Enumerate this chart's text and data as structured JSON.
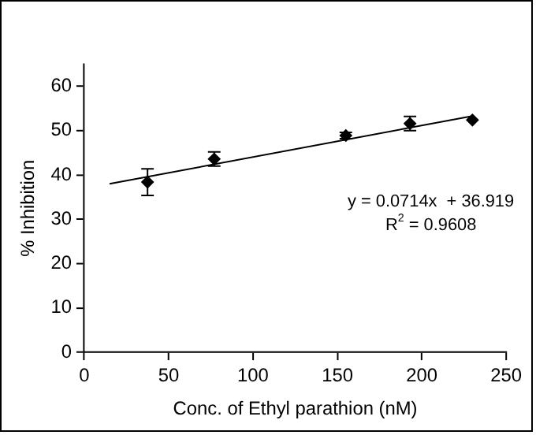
{
  "chart_data": {
    "type": "scatter",
    "xlabel": "Conc. of Ethyl parathion (nM)",
    "ylabel": "% Inhibition",
    "xlim": [
      0,
      250
    ],
    "xticks": [
      0,
      50,
      100,
      150,
      200,
      250
    ],
    "ylim": [
      0,
      65
    ],
    "yticks": [
      0,
      10,
      20,
      30,
      40,
      50,
      60
    ],
    "grid": false,
    "legend": false,
    "marker": "diamond",
    "series": [
      {
        "color": "#000000",
        "x": [
          37.5,
          77,
          155,
          193,
          230
        ],
        "values": [
          38.4,
          43.6,
          48.9,
          51.6,
          52.4
        ],
        "errors": [
          3,
          1.6,
          0.7,
          1.6,
          null
        ]
      },
      {
        "type": "line",
        "color": "#000000",
        "marker": "none",
        "line_style": "solid",
        "x": [
          15,
          230
        ],
        "values": [
          38.0,
          53.3
        ]
      }
    ],
    "annotations": [
      "y = 0.0714x  + 36.919",
      "R$^{2}$ = 0.9608"
    ]
  }
}
